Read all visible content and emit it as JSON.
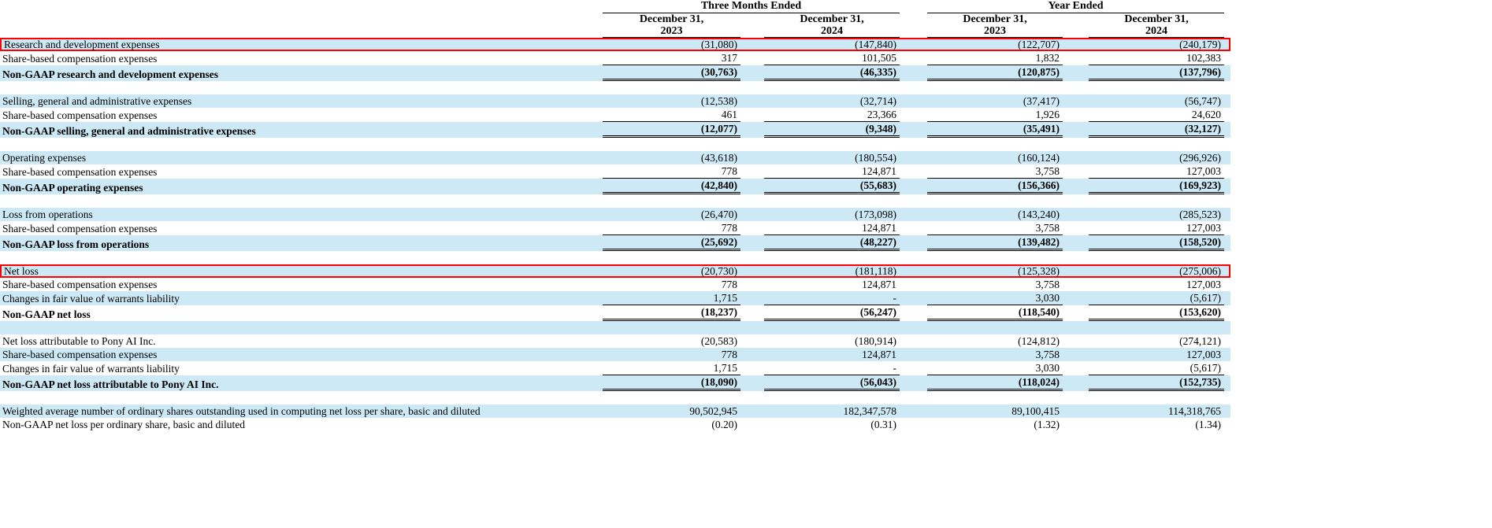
{
  "table": {
    "stripe_color": "#cde9f6",
    "highlight_color": "#ff0000",
    "groups": [
      "Three Months Ended",
      "Year Ended"
    ],
    "columns": [
      {
        "line1": "December 31,",
        "line2": "2023"
      },
      {
        "line1": "December 31,",
        "line2": "2024"
      },
      {
        "line1": "December 31,",
        "line2": "2023"
      },
      {
        "line1": "December 31,",
        "line2": "2024"
      }
    ],
    "rows": [
      {
        "label": "Research and development expenses",
        "values": [
          "(31,080)",
          "(147,840)",
          "(122,707)",
          "(240,179)"
        ],
        "highlight": true
      },
      {
        "label": "Share-based compensation expenses",
        "values": [
          "317",
          "101,505",
          "1,832",
          "102,383"
        ],
        "underline": true
      },
      {
        "label": "Non-GAAP research and development expenses",
        "values": [
          "(30,763)",
          "(46,335)",
          "(120,875)",
          "(137,796)"
        ],
        "bold": true,
        "double": true
      },
      {
        "blank": true
      },
      {
        "label": "Selling, general and administrative expenses",
        "values": [
          "(12,538)",
          "(32,714)",
          "(37,417)",
          "(56,747)"
        ]
      },
      {
        "label": "Share-based compensation expenses",
        "values": [
          "461",
          "23,366",
          "1,926",
          "24,620"
        ],
        "underline": true
      },
      {
        "label": "Non-GAAP selling, general and administrative expenses",
        "values": [
          "(12,077)",
          "(9,348)",
          "(35,491)",
          "(32,127)"
        ],
        "bold": true,
        "double": true
      },
      {
        "blank": true
      },
      {
        "label": "Operating expenses",
        "values": [
          "(43,618)",
          "(180,554)",
          "(160,124)",
          "(296,926)"
        ]
      },
      {
        "label": "Share-based compensation expenses",
        "values": [
          "778",
          "124,871",
          "3,758",
          "127,003"
        ],
        "underline": true
      },
      {
        "label": "Non-GAAP operating expenses",
        "values": [
          "(42,840)",
          "(55,683)",
          "(156,366)",
          "(169,923)"
        ],
        "bold": true,
        "double": true
      },
      {
        "blank": true
      },
      {
        "label": "Loss from operations",
        "values": [
          "(26,470)",
          "(173,098)",
          "(143,240)",
          "(285,523)"
        ]
      },
      {
        "label": "Share-based compensation expenses",
        "values": [
          "778",
          "124,871",
          "3,758",
          "127,003"
        ],
        "underline": true
      },
      {
        "label": "Non-GAAP loss from operations",
        "values": [
          "(25,692)",
          "(48,227)",
          "(139,482)",
          "(158,520)"
        ],
        "bold": true,
        "double": true
      },
      {
        "blank": true
      },
      {
        "label": "Net loss",
        "values": [
          "(20,730)",
          "(181,118)",
          "(125,328)",
          "(275,006)"
        ],
        "highlight": true
      },
      {
        "label": "Share-based compensation expenses",
        "values": [
          "778",
          "124,871",
          "3,758",
          "127,003"
        ]
      },
      {
        "label": "Changes in fair value of warrants liability",
        "values": [
          "1,715",
          "-",
          "3,030",
          "(5,617)"
        ],
        "underline": true
      },
      {
        "label": "Non-GAAP net loss",
        "values": [
          "(18,237)",
          "(56,247)",
          "(118,540)",
          "(153,620)"
        ],
        "bold": true,
        "double": true
      },
      {
        "blank": true
      },
      {
        "label": "Net loss attributable to Pony AI Inc.",
        "values": [
          "(20,583)",
          "(180,914)",
          "(124,812)",
          "(274,121)"
        ]
      },
      {
        "label": "Share-based compensation expenses",
        "values": [
          "778",
          "124,871",
          "3,758",
          "127,003"
        ]
      },
      {
        "label": "Changes in fair value of warrants liability",
        "values": [
          "1,715",
          "-",
          "3,030",
          "(5,617)"
        ],
        "underline": true
      },
      {
        "label": "Non-GAAP net loss attributable to Pony AI Inc.",
        "values": [
          "(18,090)",
          "(56,043)",
          "(118,024)",
          "(152,735)"
        ],
        "bold": true,
        "double": true
      },
      {
        "blank": true
      },
      {
        "label": "Weighted average number of ordinary shares outstanding used in computing net loss per share, basic and diluted",
        "values": [
          "90,502,945",
          "182,347,578",
          "89,100,415",
          "114,318,765"
        ]
      },
      {
        "label": "Non-GAAP net loss per ordinary share, basic and diluted",
        "values": [
          "(0.20)",
          "(0.31)",
          "(1.32)",
          "(1.34)"
        ]
      }
    ]
  }
}
